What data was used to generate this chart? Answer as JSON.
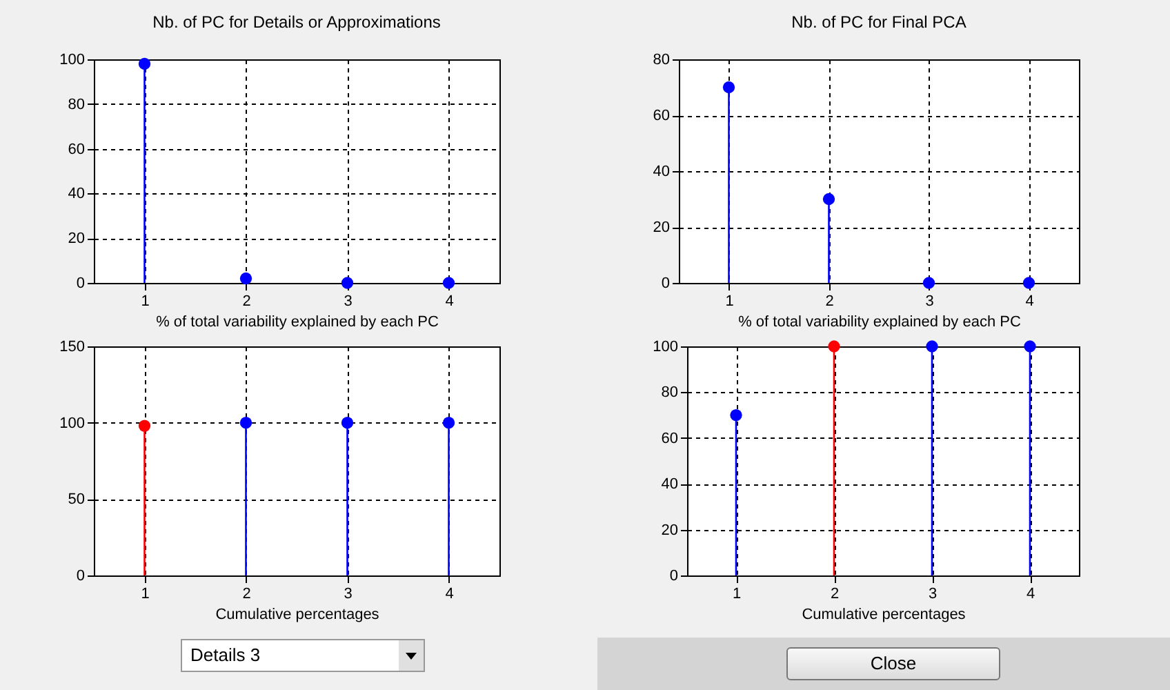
{
  "chart_data": [
    {
      "type": "lollipop",
      "title": "Nb. of PC for Details or Approximations",
      "xlabel": "% of total variability explained by each PC",
      "x": [
        1,
        2,
        3,
        4
      ],
      "values": [
        98,
        2,
        0,
        0
      ],
      "colors": [
        "#0000ff",
        "#0000ff",
        "#0000ff",
        "#0000ff"
      ],
      "xlim": [
        0.5,
        4.5
      ],
      "xticks": [
        1,
        2,
        3,
        4
      ],
      "ylim": [
        0,
        100
      ],
      "yticks": [
        0,
        20,
        40,
        60,
        80,
        100
      ],
      "grid": true,
      "marker": "circle"
    },
    {
      "type": "lollipop",
      "title": "Nb. of PC for Final PCA",
      "xlabel": "% of total variability explained by each PC",
      "x": [
        1,
        2,
        3,
        4
      ],
      "values": [
        70,
        30,
        0,
        0
      ],
      "colors": [
        "#0000ff",
        "#0000ff",
        "#0000ff",
        "#0000ff"
      ],
      "xlim": [
        0.5,
        4.5
      ],
      "xticks": [
        1,
        2,
        3,
        4
      ],
      "ylim": [
        0,
        80
      ],
      "yticks": [
        0,
        20,
        40,
        60,
        80
      ],
      "grid": true,
      "marker": "circle"
    },
    {
      "type": "lollipop",
      "xlabel": "Cumulative percentages",
      "x": [
        1,
        2,
        3,
        4
      ],
      "values": [
        98,
        100,
        100,
        100
      ],
      "colors": [
        "#ff0000",
        "#0000ff",
        "#0000ff",
        "#0000ff"
      ],
      "xlim": [
        0.5,
        4.5
      ],
      "xticks": [
        1,
        2,
        3,
        4
      ],
      "ylim": [
        0,
        150
      ],
      "yticks": [
        0,
        50,
        100,
        150
      ],
      "grid": true,
      "marker": "circle",
      "annotations": [
        "Details 3"
      ]
    },
    {
      "type": "lollipop",
      "xlabel": "Cumulative percentages",
      "x": [
        1,
        2,
        3,
        4
      ],
      "values": [
        70,
        100,
        100,
        100
      ],
      "colors": [
        "#0000ff",
        "#ff0000",
        "#0000ff",
        "#0000ff"
      ],
      "xlim": [
        0.5,
        4.5
      ],
      "xticks": [
        1,
        2,
        3,
        4
      ],
      "ylim": [
        0,
        100
      ],
      "yticks": [
        0,
        20,
        40,
        60,
        80,
        100
      ],
      "grid": true,
      "marker": "circle",
      "annotations": [
        "Close"
      ]
    }
  ]
}
